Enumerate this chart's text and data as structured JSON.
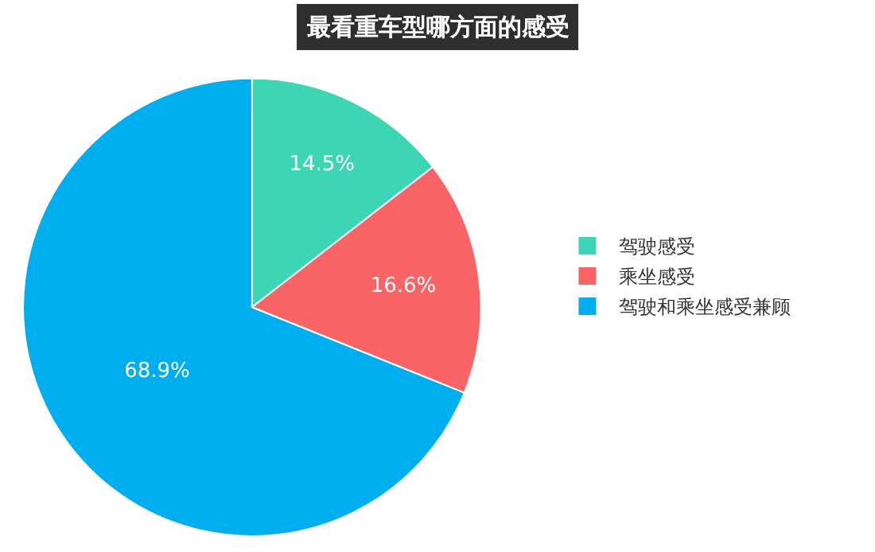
{
  "chart_data": {
    "type": "pie",
    "title": "最看重车型哪方面的感受",
    "categories": [
      "驾驶感受",
      "乘坐感受",
      "驾驶和乘坐感受兼顾"
    ],
    "values": [
      14.5,
      16.6,
      68.9
    ],
    "value_labels": [
      "14.5%",
      "16.6%",
      "68.9%"
    ],
    "colors": [
      "#3dd6b5",
      "#f96466",
      "#00aeef"
    ],
    "legend": "right"
  }
}
